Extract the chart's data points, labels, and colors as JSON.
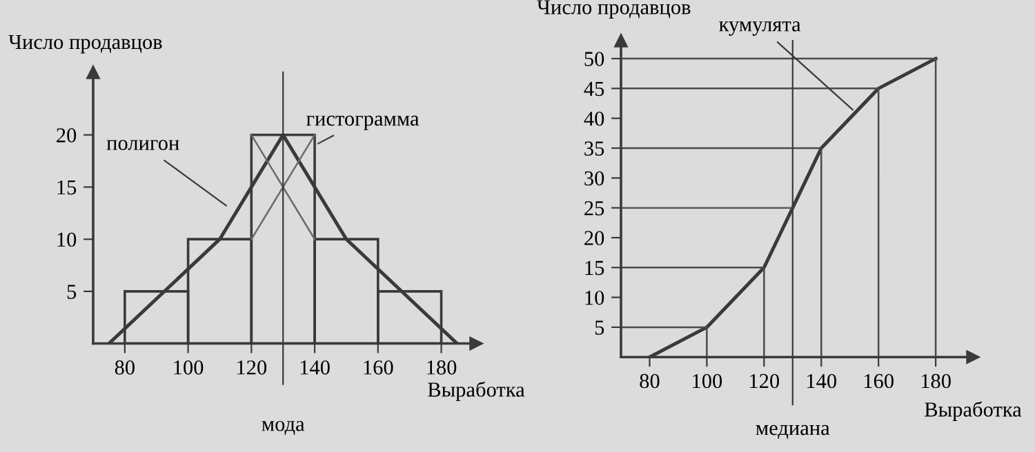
{
  "chart_data": [
    {
      "type": "histogram",
      "xlabel": "Выработка",
      "ylabel": "Число продавцов",
      "bins": [
        80,
        100,
        120,
        140,
        160,
        180
      ],
      "values": [
        5,
        10,
        20,
        10,
        5
      ],
      "color": "#3a3a3a",
      "series": [
        {
          "type": "line",
          "x": [
            75,
            110,
            130,
            150,
            185
          ],
          "values": [
            0,
            10,
            20,
            10,
            0
          ],
          "color": "#3a3a3a"
        },
        {
          "type": "line",
          "x": [
            120,
            140
          ],
          "values": [
            20,
            10
          ],
          "color": "#6a6a6a"
        },
        {
          "type": "line",
          "x": [
            120,
            140
          ],
          "values": [
            10,
            20
          ],
          "color": "#6a6a6a"
        }
      ],
      "xlim": [
        70,
        191
      ],
      "ylim": [
        0,
        26
      ],
      "xticks": [
        80,
        100,
        120,
        140,
        160,
        180
      ],
      "yticks": [
        5,
        10,
        15,
        20
      ],
      "ref_lines": [
        {
          "axis": "x",
          "value": 130,
          "label": "мода",
          "color": "#3a3a3a"
        }
      ],
      "annotations": [
        {
          "text": "полигон",
          "x": 113,
          "y": 13
        },
        {
          "text": "гистограмма",
          "x": 140,
          "y": 19
        }
      ],
      "grid": false,
      "marker": "none",
      "line_style": "solid"
    },
    {
      "type": "line",
      "xlabel": "Выработка",
      "ylabel": "Число продавцов",
      "series": [
        {
          "x": [
            80,
            100,
            120,
            140,
            160,
            180
          ],
          "values": [
            0,
            5,
            15,
            35,
            45,
            50
          ],
          "color": "#3a3a3a"
        },
        {
          "x": [
            70,
            100,
            100
          ],
          "values": [
            5,
            5,
            0
          ],
          "color": "#4a4a4a"
        },
        {
          "x": [
            70,
            120,
            120
          ],
          "values": [
            15,
            15,
            0
          ],
          "color": "#4a4a4a"
        },
        {
          "x": [
            70,
            140,
            140
          ],
          "values": [
            35,
            35,
            0
          ],
          "color": "#4a4a4a"
        },
        {
          "x": [
            70,
            160,
            160
          ],
          "values": [
            45,
            45,
            0
          ],
          "color": "#4a4a4a"
        },
        {
          "x": [
            70,
            180,
            180
          ],
          "values": [
            50,
            50,
            0
          ],
          "color": "#4a4a4a"
        },
        {
          "x": [
            70,
            130
          ],
          "values": [
            25,
            25
          ],
          "color": "#5a5a5a"
        }
      ],
      "xlim": [
        70,
        193
      ],
      "ylim": [
        0,
        53
      ],
      "xticks": [
        80,
        100,
        120,
        140,
        160,
        180
      ],
      "yticks": [
        5,
        10,
        15,
        20,
        25,
        30,
        35,
        40,
        45,
        50
      ],
      "ref_lines": [
        {
          "axis": "x",
          "value": 130,
          "label": "медиана",
          "color": "#3a3a3a"
        }
      ],
      "annotations": [
        {
          "text": "кумулята",
          "x": 152,
          "y": 41
        }
      ],
      "grid": false,
      "marker": "none",
      "line_style": "solid"
    }
  ]
}
